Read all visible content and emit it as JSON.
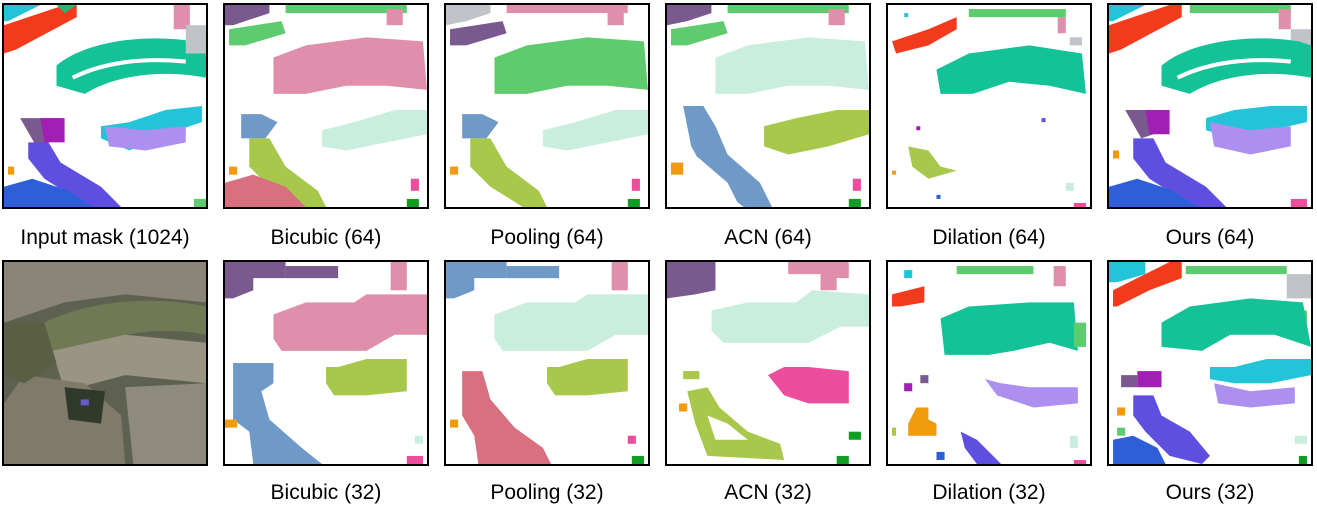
{
  "top_row": {
    "captions": [
      "Input mask (1024)",
      "Bicubic (64)",
      "Pooling (64)",
      "ACN (64)",
      "Dilation (64)",
      "Ours (64)"
    ]
  },
  "bottom_row": {
    "captions": [
      "Bicubic (32)",
      "Pooling (32)",
      "ACN (32)",
      "Dilation (32)",
      "Ours (32)"
    ]
  },
  "colors": {
    "teal": "#13c296",
    "red": "#f23a1d",
    "cyan": "#23c4d8",
    "lavender": "#ad8ff0",
    "indigo": "#5f4fe0",
    "blue": "#2f5fd8",
    "purple": "#7a5a8e",
    "magenta": "#a21fb5",
    "pink": "#df8fab",
    "green": "#5fcb6f",
    "mint": "#c9eedd",
    "steel": "#6f9ac8",
    "olive": "#a8c84c",
    "rose": "#d87080",
    "hotpink": "#ec4d9c",
    "orange": "#f09a0c",
    "grey": "#c0c4c8"
  }
}
